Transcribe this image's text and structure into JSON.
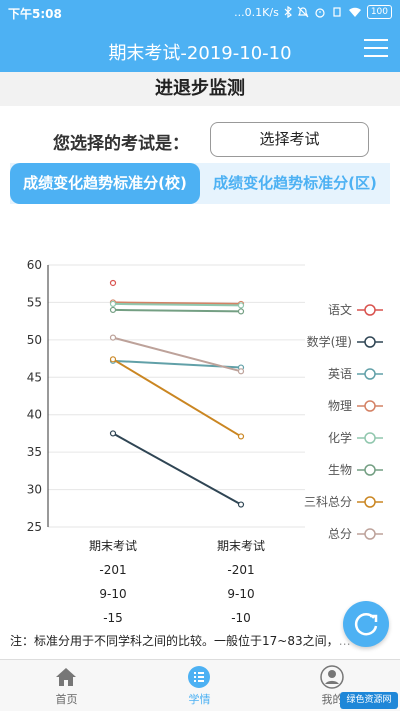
{
  "status_bar": {
    "time": "下午5:08",
    "network_speed": "...0.1K/s",
    "battery": "100"
  },
  "header": {
    "title": "期末考试-2019-10-10",
    "menu_icon": "menu-icon"
  },
  "section_title": "进退步监测",
  "exam_select": {
    "label": "您选择的考试是：",
    "button_label": "选择考试"
  },
  "tabs": [
    {
      "label": "成绩变化趋势标准分(校)",
      "active": true
    },
    {
      "label": "成绩变化趋势标准分(区)",
      "active": false
    }
  ],
  "colors": {
    "accent": "#4db1f3",
    "accent_light": "#e6f3fd"
  },
  "chart_data": {
    "type": "line",
    "title": "",
    "xlabel": "",
    "ylabel": "",
    "ylim": [
      25,
      60
    ],
    "yticks": [
      25,
      30,
      35,
      40,
      45,
      50,
      55,
      60
    ],
    "categories": [
      [
        "期末考试",
        "-201",
        "9-10",
        "-15"
      ],
      [
        "期末考试",
        "-201",
        "9-10",
        "-10"
      ]
    ],
    "legend_position": "right",
    "series": [
      {
        "name": "语文",
        "color": "#d9534f",
        "values": [
          57.6,
          null
        ]
      },
      {
        "name": "数学(理)",
        "color": "#2f4554",
        "values": [
          37.5,
          28.0
        ]
      },
      {
        "name": "英语",
        "color": "#61a0a8",
        "values": [
          47.2,
          46.3
        ]
      },
      {
        "name": "物理",
        "color": "#d48265",
        "values": [
          55.0,
          54.8
        ]
      },
      {
        "name": "化学",
        "color": "#91c7ae",
        "values": [
          54.8,
          54.6
        ]
      },
      {
        "name": "生物",
        "color": "#749f83",
        "values": [
          54.0,
          53.8
        ]
      },
      {
        "name": "三科总分",
        "color": "#ca8622",
        "values": [
          47.4,
          37.1
        ]
      },
      {
        "name": "总分",
        "color": "#bda29a",
        "values": [
          50.3,
          45.8
        ]
      }
    ]
  },
  "note": {
    "text": "注：标准分用于不同学科之间的比较。一般位于17~83之间，",
    "continuation": "…"
  },
  "fab_icon": "refresh-icon",
  "bottom_nav": [
    {
      "label": "首页",
      "icon": "home-icon",
      "active": false
    },
    {
      "label": "学情",
      "icon": "list-icon",
      "active": true
    },
    {
      "label": "我的",
      "icon": "user-icon",
      "active": false
    }
  ],
  "watermark": "绿色资源网"
}
